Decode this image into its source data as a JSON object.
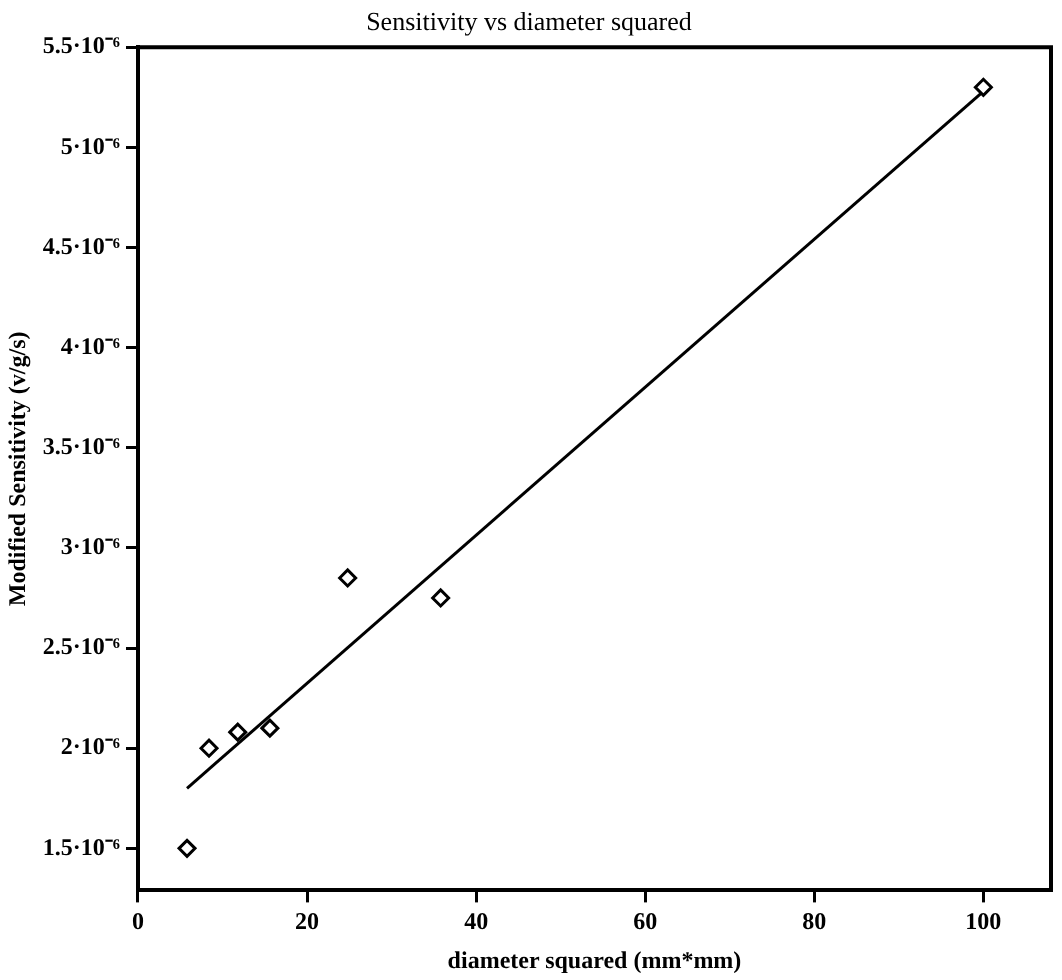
{
  "chart_data": {
    "type": "scatter",
    "title": "Sensitivity vs diameter squared",
    "xlabel": "diameter squared (mm*mm)",
    "ylabel": "Modified Sensitivity (v/g/s)",
    "xlim": [
      0,
      108
    ],
    "xticks": [
      0,
      20,
      40,
      60,
      80,
      100
    ],
    "ylim": [
      1.29e-06,
      5.5e-06
    ],
    "yticks": [
      {
        "value": 1.5e-06,
        "label": "1.5·10⁻⁶"
      },
      {
        "value": 2e-06,
        "label": "2·10⁻⁶"
      },
      {
        "value": 2.5e-06,
        "label": "2.5·10⁻⁶"
      },
      {
        "value": 3e-06,
        "label": "3·10⁻⁶"
      },
      {
        "value": 3.5e-06,
        "label": "3.5·10⁻⁶"
      },
      {
        "value": 4e-06,
        "label": "4·10⁻⁶"
      },
      {
        "value": 4.5e-06,
        "label": "4.5·10⁻⁶"
      },
      {
        "value": 5e-06,
        "label": "5·10⁻⁶"
      },
      {
        "value": 5.5e-06,
        "label": "5.5·10⁻⁶"
      }
    ],
    "grid": false,
    "legend": false,
    "series": [
      {
        "marker": "diamond",
        "color": "#000000",
        "x": [
          5.8,
          8.4,
          11.8,
          15.6,
          24.8,
          35.8,
          100
        ],
        "values": [
          1.5e-06,
          2e-06,
          2.08e-06,
          2.1e-06,
          2.85e-06,
          2.75e-06,
          5.3e-06
        ]
      },
      {
        "type": "line",
        "color": "#000000",
        "x": [
          5.8,
          100
        ],
        "values": [
          1.8e-06,
          5.28e-06
        ]
      }
    ]
  }
}
